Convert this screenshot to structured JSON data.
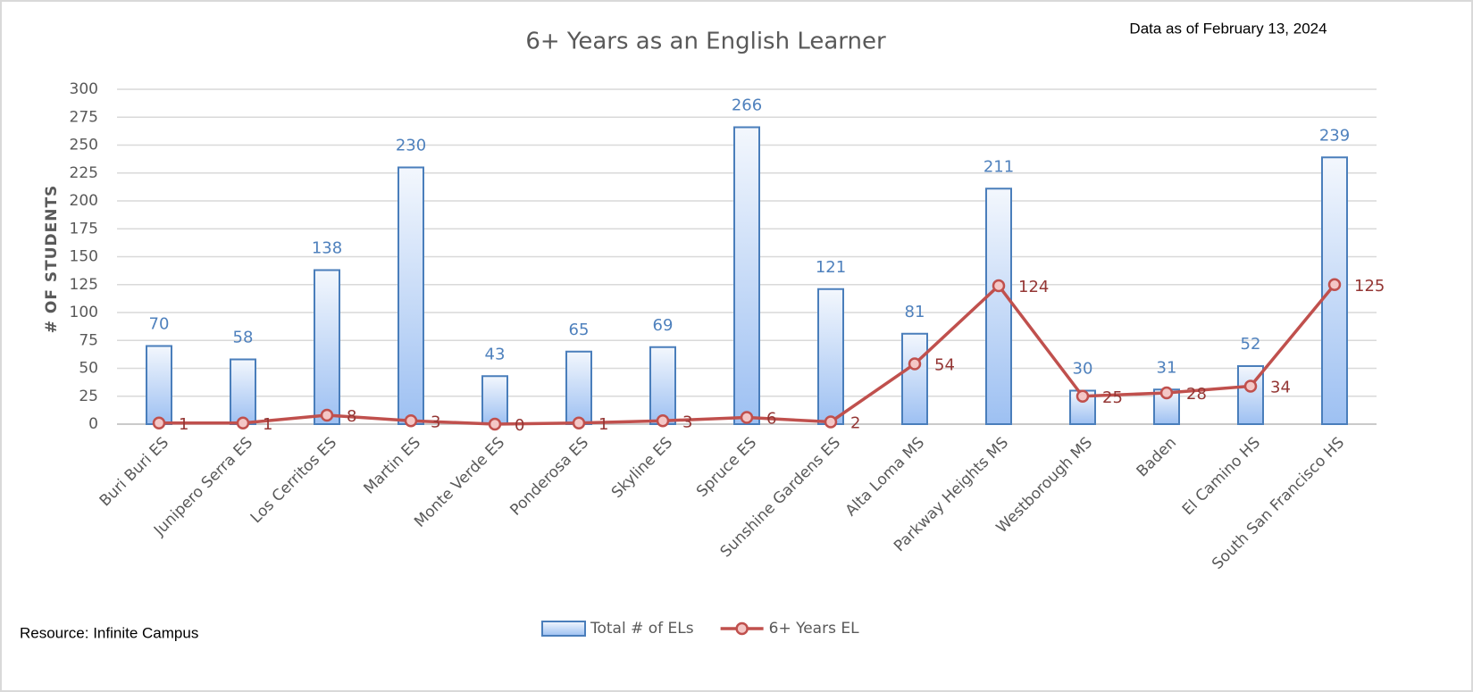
{
  "chart_data": {
    "type": "bar",
    "title": "6+ Years as an English Learner",
    "note": "Data as of February 13, 2024",
    "source": "Resource: Infinite Campus",
    "y_label": "# OF STUDENTS",
    "categories": [
      "Buri Buri ES",
      "Junipero Serra ES",
      "Los Cerritos ES",
      "Martin ES",
      "Monte Verde ES",
      "Ponderosa ES",
      "Skyline ES",
      "Spruce ES",
      "Sunshine Gardens ES",
      "Alta Loma MS",
      "Parkway Heights MS",
      "Westborough MS",
      "Baden",
      "El Camino HS",
      "South San Francisco HS"
    ],
    "series": [
      {
        "name": "Total # of ELs",
        "type": "bar",
        "color": "#4a7ebb",
        "values": [
          70,
          58,
          138,
          230,
          43,
          65,
          69,
          266,
          121,
          81,
          211,
          30,
          31,
          52,
          239
        ]
      },
      {
        "name": "6+ Years EL",
        "type": "line",
        "color": "#c0504d",
        "values": [
          1,
          1,
          8,
          3,
          0,
          1,
          3,
          6,
          2,
          54,
          124,
          25,
          28,
          34,
          125
        ]
      }
    ],
    "ylim": [
      0,
      300
    ],
    "yticks": [
      0,
      25,
      50,
      75,
      100,
      125,
      150,
      175,
      200,
      225,
      250,
      275,
      300
    ],
    "grid": true,
    "legend": "bottom"
  }
}
